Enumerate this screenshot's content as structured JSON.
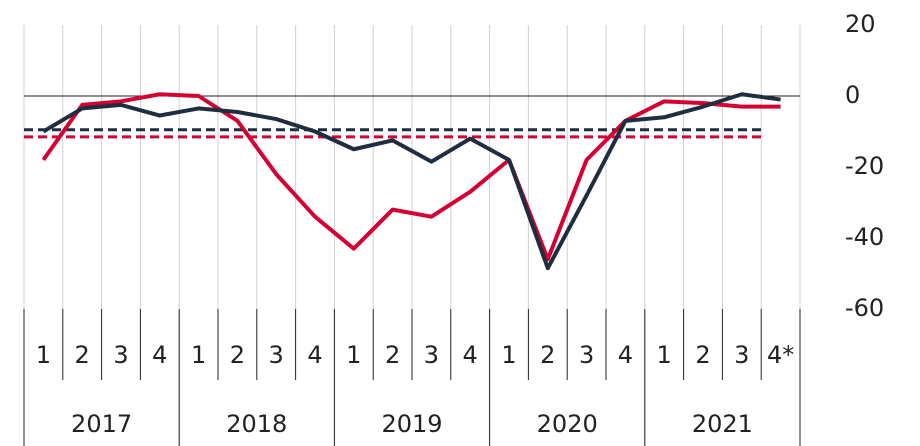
{
  "chart_data": {
    "type": "line",
    "categories": [
      "1",
      "2",
      "3",
      "4",
      "1",
      "2",
      "3",
      "4",
      "1",
      "2",
      "3",
      "4",
      "1",
      "2",
      "3",
      "4",
      "1",
      "2",
      "3",
      "4*"
    ],
    "years": [
      "2017",
      "2018",
      "2019",
      "2020",
      "2021"
    ],
    "series": [
      {
        "color": "#d50032",
        "values": [
          -18,
          -2.5,
          -1.5,
          0.5,
          0,
          -7,
          -22,
          -34,
          -43,
          -32,
          -34,
          -27,
          -18,
          -46,
          -18,
          -7,
          -1.5,
          -2,
          -3,
          -3
        ]
      },
      {
        "color": "#1e2d40",
        "values": [
          -10,
          -3.5,
          -2.5,
          -5.5,
          -3.5,
          -4.5,
          -6.5,
          -10,
          -15,
          -12.5,
          -18.5,
          -12,
          -18,
          -48.5,
          -28,
          -7,
          -6,
          -3,
          0.5,
          -1
        ]
      }
    ],
    "reference_lines": [
      {
        "color": "#d50032",
        "value": -11.5
      },
      {
        "color": "#1e2d40",
        "value": -9.5
      }
    ],
    "ylim": [
      -60,
      20
    ],
    "yticks": [
      20,
      0,
      -20,
      -40,
      -60
    ]
  }
}
